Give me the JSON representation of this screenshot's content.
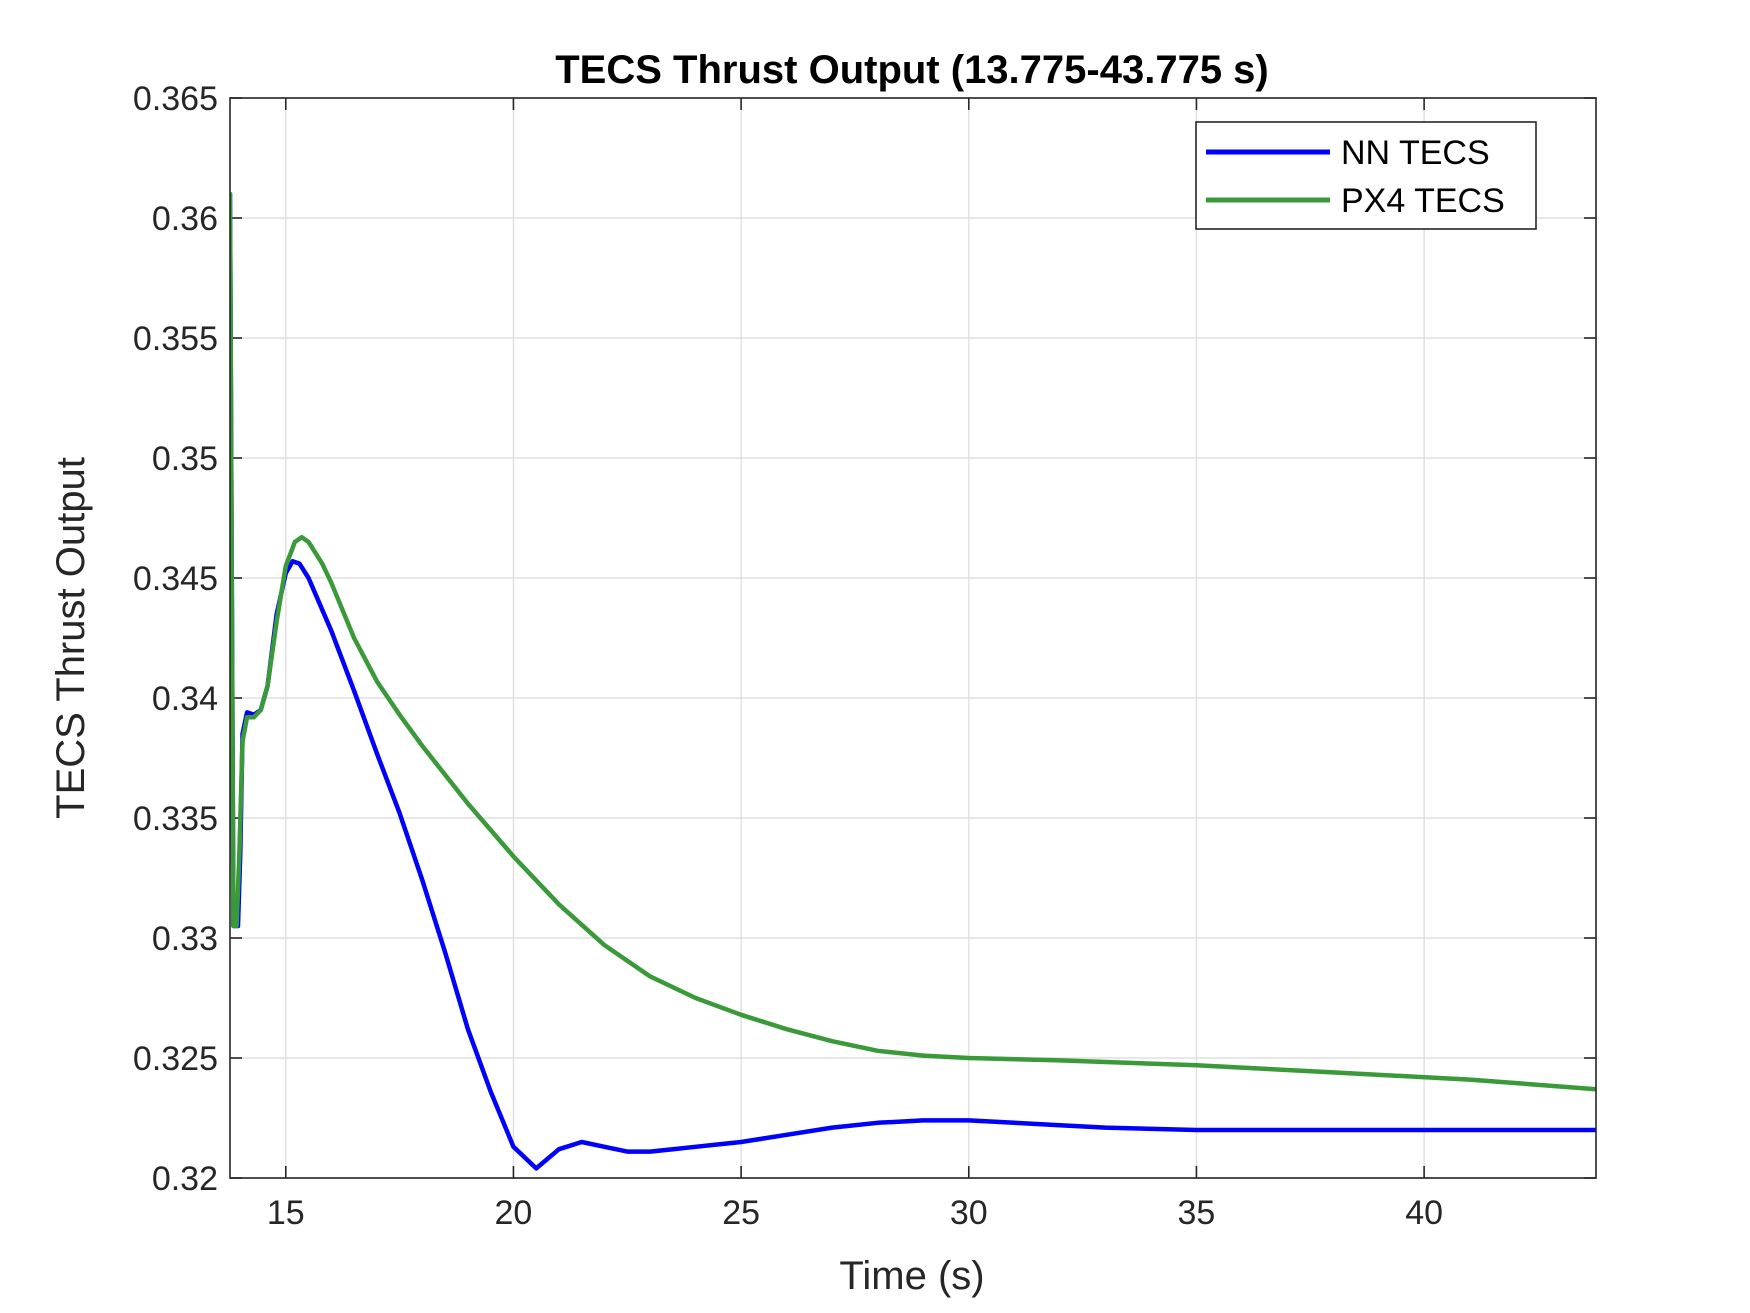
{
  "chart_data": {
    "type": "line",
    "title": "TECS Thrust Output (13.775-43.775 s)",
    "xlabel": "Time (s)",
    "ylabel": "TECS Thrust Output",
    "xlim": [
      13.775,
      43.775
    ],
    "ylim": [
      0.32,
      0.365
    ],
    "xticks": [
      15,
      20,
      25,
      30,
      35,
      40
    ],
    "xtick_labels": [
      "15",
      "20",
      "25",
      "30",
      "35",
      "40"
    ],
    "yticks": [
      0.32,
      0.325,
      0.33,
      0.335,
      0.34,
      0.345,
      0.35,
      0.355,
      0.36,
      0.365
    ],
    "ytick_labels": [
      "0.32",
      "0.325",
      "0.33",
      "0.335",
      "0.34",
      "0.345",
      "0.35",
      "0.355",
      "0.36",
      "0.365"
    ],
    "grid": true,
    "legend_position": "top-right",
    "series": [
      {
        "name": "NN TECS",
        "color": "#0000ff",
        "x": [
          13.775,
          13.85,
          13.95,
          14.0,
          14.05,
          14.15,
          14.3,
          14.45,
          14.6,
          14.8,
          15.0,
          15.15,
          15.3,
          15.5,
          16.0,
          16.5,
          17.0,
          17.5,
          18.0,
          18.5,
          19.0,
          19.5,
          20.0,
          20.5,
          21.0,
          21.5,
          22.0,
          22.5,
          23.0,
          23.5,
          24.0,
          25.0,
          26.0,
          27.0,
          28.0,
          29.0,
          30.0,
          31.0,
          32.0,
          33.0,
          35.0,
          37.0,
          40.0,
          43.775
        ],
        "y": [
          0.361,
          0.3305,
          0.3305,
          0.3335,
          0.3385,
          0.3394,
          0.3393,
          0.3395,
          0.3405,
          0.3435,
          0.3452,
          0.3457,
          0.3456,
          0.345,
          0.3428,
          0.3403,
          0.3377,
          0.3352,
          0.3324,
          0.3294,
          0.3262,
          0.3236,
          0.3213,
          0.3204,
          0.3212,
          0.3215,
          0.3213,
          0.3211,
          0.3211,
          0.3212,
          0.3213,
          0.3215,
          0.3218,
          0.3221,
          0.3223,
          0.3224,
          0.3224,
          0.3223,
          0.3222,
          0.3221,
          0.322,
          0.322,
          0.322,
          0.322
        ]
      },
      {
        "name": "PX4 TECS",
        "color": "#3a9a3a",
        "x": [
          13.775,
          13.85,
          13.92,
          13.98,
          14.05,
          14.15,
          14.3,
          14.45,
          14.6,
          14.8,
          15.0,
          15.2,
          15.35,
          15.5,
          15.8,
          16.0,
          16.5,
          17.0,
          17.5,
          18.0,
          18.5,
          19.0,
          20.0,
          21.0,
          22.0,
          23.0,
          24.0,
          25.0,
          26.0,
          27.0,
          28.0,
          29.0,
          30.0,
          32.0,
          35.0,
          38.0,
          41.0,
          43.775
        ],
        "y": [
          0.361,
          0.3305,
          0.3305,
          0.3335,
          0.3382,
          0.3392,
          0.3392,
          0.3395,
          0.3405,
          0.3432,
          0.3455,
          0.3465,
          0.3467,
          0.3465,
          0.3456,
          0.3448,
          0.3425,
          0.3407,
          0.3393,
          0.338,
          0.3368,
          0.3356,
          0.3334,
          0.3314,
          0.3297,
          0.3284,
          0.3275,
          0.3268,
          0.3262,
          0.3257,
          0.3253,
          0.3251,
          0.325,
          0.3249,
          0.3247,
          0.3244,
          0.3241,
          0.3237
        ]
      }
    ]
  }
}
